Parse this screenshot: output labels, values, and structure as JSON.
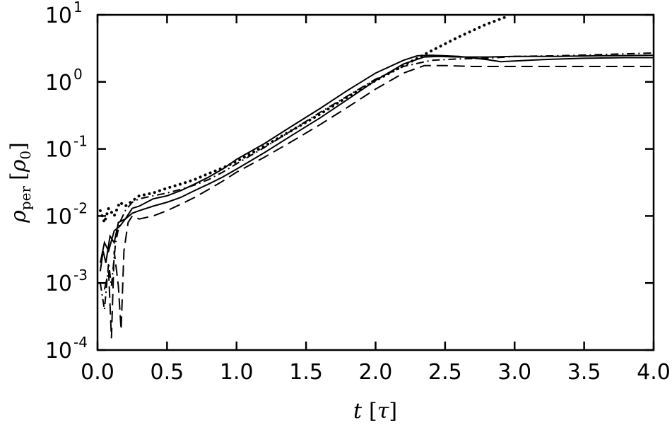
{
  "chart_data": {
    "type": "line",
    "title": "",
    "xlabel": {
      "var": "t",
      "unit_open": "[",
      "unit": "τ",
      "unit_close": "]"
    },
    "ylabel": {
      "var": "ρ",
      "sub": "per",
      "unit_open": "[",
      "unit": "ρ",
      "unit_sub": "0",
      "unit_close": "]"
    },
    "xlim": [
      0,
      4
    ],
    "ylim": [
      0.0001,
      10
    ],
    "yscale": "log",
    "grid": false,
    "legend": "none",
    "xticks": [
      "0.0",
      "0.5",
      "1.0",
      "1.5",
      "2.0",
      "2.5",
      "3.0",
      "3.5",
      "4.0"
    ],
    "yticks": [
      {
        "base": "10",
        "exp": "-4"
      },
      {
        "base": "10",
        "exp": "-3"
      },
      {
        "base": "10",
        "exp": "-2"
      },
      {
        "base": "10",
        "exp": "-1"
      },
      {
        "base": "10",
        "exp": "0"
      },
      {
        "base": "10",
        "exp": "1"
      }
    ],
    "series": [
      {
        "style": "dotted",
        "x": [
          0.02,
          0.05,
          0.08,
          0.12,
          0.16,
          0.2,
          0.3,
          0.4,
          0.5,
          0.6,
          0.7,
          0.8,
          0.9,
          1.0,
          1.2,
          1.4,
          1.6,
          1.8,
          2.0,
          2.2,
          2.4,
          2.6,
          2.8,
          2.95
        ],
        "y": [
          0.012,
          0.008,
          0.013,
          0.01,
          0.016,
          0.014,
          0.02,
          0.022,
          0.026,
          0.03,
          0.035,
          0.043,
          0.052,
          0.065,
          0.11,
          0.19,
          0.33,
          0.6,
          1.05,
          1.75,
          2.9,
          4.7,
          7.3,
          9.5
        ]
      },
      {
        "style": "solid",
        "x": [
          0.02,
          0.04,
          0.06,
          0.09,
          0.12,
          0.15,
          0.2,
          0.25,
          0.3,
          0.4,
          0.5,
          0.6,
          0.7,
          0.8,
          0.9,
          1.0,
          1.2,
          1.4,
          1.6,
          1.8,
          2.0,
          2.2,
          2.3,
          2.4,
          2.5,
          2.6,
          2.8,
          2.9,
          3.0,
          3.2,
          3.5,
          3.8,
          4.0
        ],
        "y": [
          0.0015,
          0.003,
          0.002,
          0.005,
          0.004,
          0.008,
          0.009,
          0.013,
          0.014,
          0.018,
          0.02,
          0.024,
          0.03,
          0.038,
          0.05,
          0.07,
          0.12,
          0.22,
          0.4,
          0.75,
          1.35,
          2.1,
          2.45,
          2.5,
          2.45,
          2.4,
          2.15,
          2.0,
          2.05,
          2.15,
          2.25,
          2.3,
          2.3
        ]
      },
      {
        "style": "solid",
        "x": [
          0.02,
          0.05,
          0.08,
          0.12,
          0.16,
          0.2,
          0.25,
          0.3,
          0.4,
          0.5,
          0.6,
          0.7,
          0.8,
          0.9,
          1.0,
          1.2,
          1.4,
          1.6,
          1.8,
          2.0,
          2.2,
          2.35,
          2.45,
          2.6,
          2.8,
          3.0,
          3.3,
          3.6,
          4.0
        ],
        "y": [
          0.002,
          0.004,
          0.003,
          0.006,
          0.007,
          0.009,
          0.011,
          0.012,
          0.014,
          0.016,
          0.019,
          0.024,
          0.03,
          0.038,
          0.05,
          0.088,
          0.16,
          0.29,
          0.55,
          1.05,
          1.85,
          2.35,
          2.4,
          2.35,
          2.35,
          2.4,
          2.4,
          2.45,
          2.5
        ]
      },
      {
        "style": "dashdot",
        "x": [
          0.02,
          0.05,
          0.08,
          0.1,
          0.13,
          0.16,
          0.2,
          0.25,
          0.3,
          0.4,
          0.5,
          0.6,
          0.7,
          0.8,
          0.9,
          1.0,
          1.2,
          1.4,
          1.6,
          1.8,
          2.0,
          2.2,
          2.4,
          2.6,
          2.8,
          3.0,
          3.3,
          3.6,
          4.0
        ],
        "y": [
          0.001,
          0.0004,
          0.002,
          0.0009,
          0.004,
          0.008,
          0.012,
          0.016,
          0.018,
          0.02,
          0.022,
          0.025,
          0.029,
          0.035,
          0.045,
          0.06,
          0.105,
          0.19,
          0.35,
          0.62,
          1.1,
          1.7,
          2.1,
          2.2,
          2.25,
          2.4,
          2.45,
          2.55,
          2.7
        ]
      },
      {
        "style": "dashed",
        "x": [
          0.05,
          0.08,
          0.1,
          0.12,
          0.15,
          0.17,
          0.19,
          0.22,
          0.25,
          0.3,
          0.4,
          0.5,
          0.6,
          0.7,
          0.8,
          0.9,
          1.0,
          1.2,
          1.4,
          1.6,
          1.8,
          2.0,
          2.2,
          2.35,
          2.5,
          2.7,
          3.0,
          3.5,
          4.0
        ],
        "y": [
          0.0008,
          0.0015,
          0.00015,
          0.003,
          0.0009,
          0.0002,
          0.003,
          0.008,
          0.01,
          0.009,
          0.01,
          0.012,
          0.015,
          0.019,
          0.025,
          0.033,
          0.045,
          0.075,
          0.13,
          0.23,
          0.42,
          0.78,
          1.35,
          1.75,
          1.75,
          1.7,
          1.7,
          1.7,
          1.7
        ]
      }
    ]
  }
}
